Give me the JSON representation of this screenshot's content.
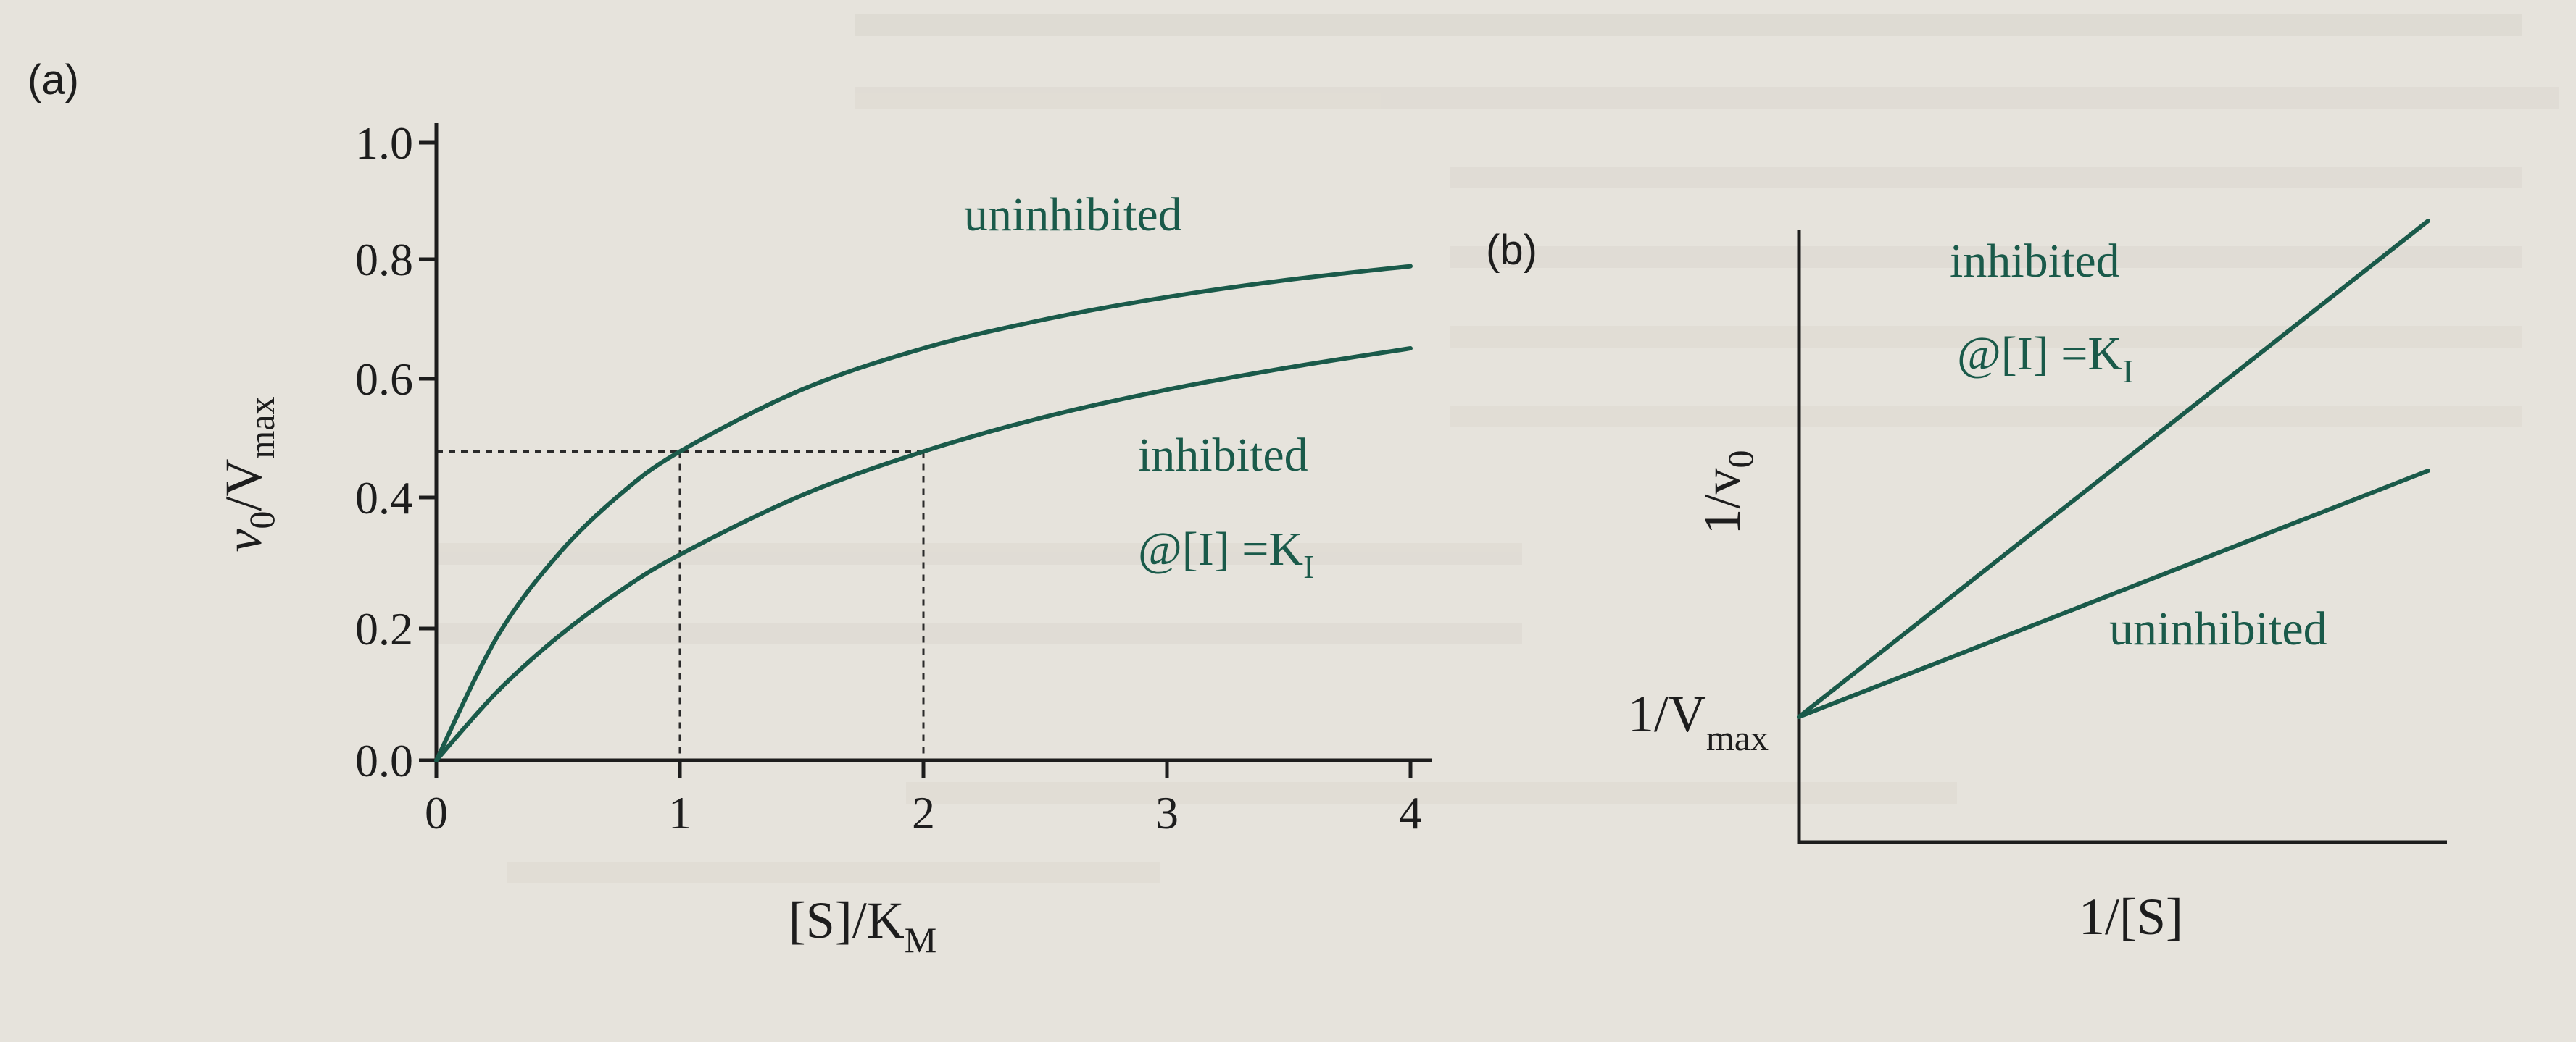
{
  "colors": {
    "curve": "#1a5a4a",
    "axis": "#1d1d1d",
    "paper": "#e6e3dc"
  },
  "chart_data": [
    {
      "panel": "(a)",
      "type": "line",
      "xlabel": {
        "base": "[S]/K",
        "sub": "M"
      },
      "ylabel": {
        "base": "v",
        "sub1": "0",
        "mid": "/V",
        "sub2": "max"
      },
      "xlim": [
        0,
        4
      ],
      "ylim": [
        0,
        1.0
      ],
      "xticks": [
        "0",
        "1",
        "2",
        "3",
        "4"
      ],
      "yticks": [
        "0.0",
        "0.2",
        "0.4",
        "0.6",
        "0.8",
        "1.0"
      ],
      "series": [
        {
          "name": "uninhibited",
          "x": [
            0,
            0.25,
            0.5,
            0.75,
            1,
            1.5,
            2,
            2.5,
            3,
            3.5,
            4
          ],
          "y": [
            0,
            0.2,
            0.333,
            0.429,
            0.5,
            0.6,
            0.667,
            0.714,
            0.75,
            0.778,
            0.8
          ]
        },
        {
          "name": "inhibited",
          "x": [
            0,
            0.25,
            0.5,
            0.75,
            1,
            1.5,
            2,
            2.5,
            3,
            3.5,
            4
          ],
          "y": [
            0,
            0.111,
            0.2,
            0.273,
            0.333,
            0.429,
            0.5,
            0.556,
            0.6,
            0.636,
            0.667
          ]
        }
      ],
      "labels": {
        "uninhibited": "uninhibited",
        "inhibited": "inhibited",
        "condition": {
          "base": "@[I] =K",
          "sub": "I"
        }
      },
      "guides": {
        "y": 0.5,
        "x": [
          1,
          2
        ]
      }
    },
    {
      "panel": "(b)",
      "type": "line",
      "xlabel": {
        "base": "1/[S]"
      },
      "ylabel": {
        "base": "1/v",
        "sub": "0"
      },
      "yintercept_label": {
        "base": "1/V",
        "sub": "max"
      },
      "series": [
        {
          "name": "inhibited",
          "slope_ratio": 2
        },
        {
          "name": "uninhibited",
          "slope_ratio": 1
        }
      ],
      "labels": {
        "inhibited": "inhibited",
        "condition": {
          "base": "@[I] =K",
          "sub": "I"
        },
        "uninhibited": "uninhibited"
      }
    }
  ]
}
